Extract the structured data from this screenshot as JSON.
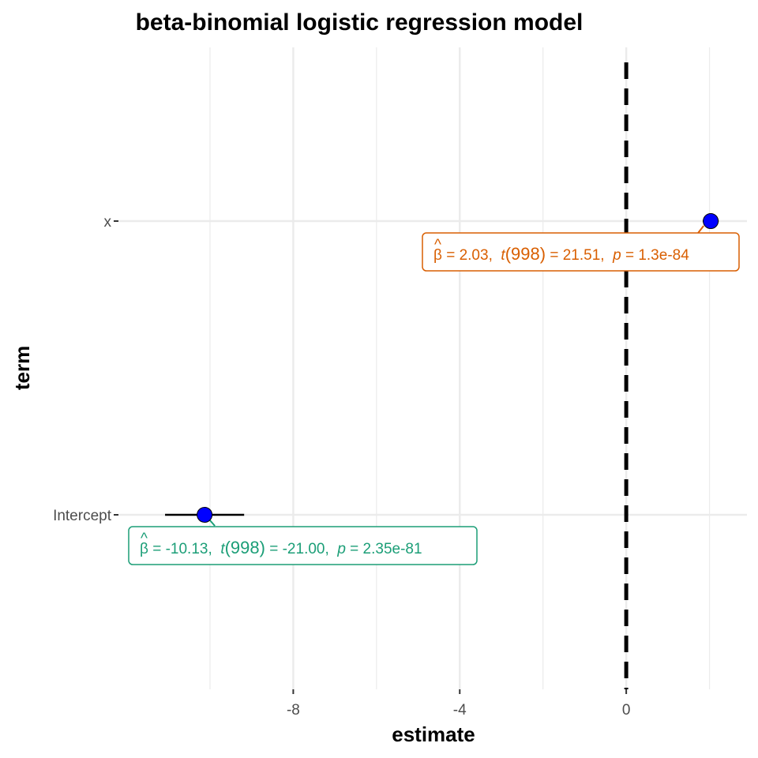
{
  "chart_data": {
    "type": "forest",
    "title": "beta-binomial logistic regression model",
    "xlabel": "estimate",
    "ylabel": "term",
    "xlim": [
      -12.2,
      2.9
    ],
    "x_ticks": [
      -8,
      -4,
      0
    ],
    "x_tick_labels": [
      "-8",
      "-4",
      "0"
    ],
    "x_minor_gridlines": [
      -10,
      -6,
      -2,
      2
    ],
    "reference_line": {
      "x": 0,
      "style": "dashed"
    },
    "grid": true,
    "colors": {
      "point": "#0000ff",
      "interval": "#000000",
      "grid": "#ebebeb",
      "x_label": "#d95f02",
      "intercept_label": "#1b9e77"
    },
    "terms": [
      {
        "name": "x",
        "estimate": 2.03,
        "ci": [
          1.84,
          2.22
        ],
        "label_parts": {
          "beta": "β",
          "beta_hat": "^",
          "estimate_text": " = 2.03,  ",
          "t_symbol": "t",
          "df_text": "(998)",
          "t_value_text": " = 21.51,  ",
          "p_symbol": "p",
          "p_value_text": " = 1.3e-84"
        },
        "label_color": "#d95f02"
      },
      {
        "name": "Intercept",
        "estimate": -10.13,
        "ci": [
          -11.08,
          -9.18
        ],
        "label_parts": {
          "beta": "β",
          "beta_hat": "^",
          "estimate_text": " = -10.13,  ",
          "t_symbol": "t",
          "df_text": "(998)",
          "t_value_text": " = -21.00,  ",
          "p_symbol": "p",
          "p_value_text": " = 2.35e-81"
        },
        "label_color": "#1b9e77"
      }
    ]
  }
}
